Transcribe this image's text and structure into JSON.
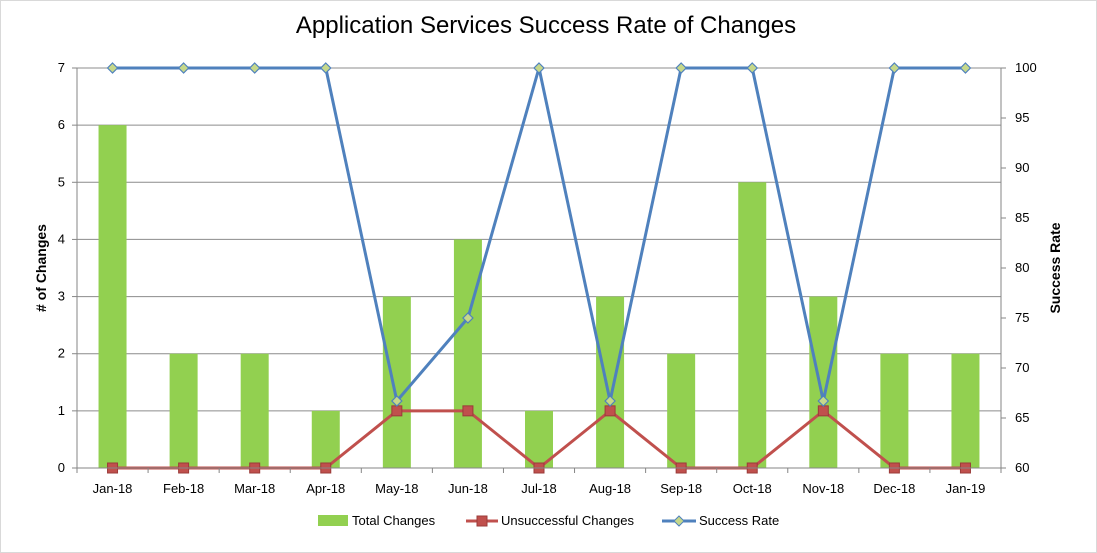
{
  "chart_data": {
    "type": "bar",
    "title": "Application Services Success Rate of Changes",
    "xlabel": "",
    "ylabel": "# of Changes",
    "y2label": "Success Rate",
    "categories": [
      "Jan-18",
      "Feb-18",
      "Mar-18",
      "Apr-18",
      "May-18",
      "Jun-18",
      "Jul-18",
      "Aug-18",
      "Sep-18",
      "Oct-18",
      "Nov-18",
      "Dec-18",
      "Jan-19"
    ],
    "ylim": [
      0,
      7
    ],
    "y2lim": [
      60,
      100
    ],
    "yticks": [
      "0",
      "1",
      "2",
      "3",
      "4",
      "5",
      "6",
      "7"
    ],
    "y2ticks": [
      "60",
      "65",
      "70",
      "75",
      "80",
      "85",
      "90",
      "95",
      "100"
    ],
    "grid": true,
    "legend_position": "bottom",
    "series": [
      {
        "name": "Total Changes",
        "type": "bar",
        "axis": "left",
        "color": "#92d050",
        "values": [
          6,
          2,
          2,
          1,
          3,
          4,
          1,
          3,
          2,
          5,
          3,
          2,
          2
        ]
      },
      {
        "name": "Unsuccessful Changes",
        "type": "line",
        "axis": "left",
        "color": "#c0504d",
        "marker": "square",
        "values": [
          0,
          0,
          0,
          0,
          1,
          1,
          0,
          1,
          0,
          0,
          1,
          0,
          0
        ]
      },
      {
        "name": "Success Rate",
        "type": "line",
        "axis": "right",
        "color": "#4f81bd",
        "marker": "diamond",
        "values": [
          100,
          100,
          100,
          100,
          66.7,
          75,
          100,
          66.7,
          100,
          100,
          66.7,
          100,
          100
        ]
      }
    ]
  }
}
